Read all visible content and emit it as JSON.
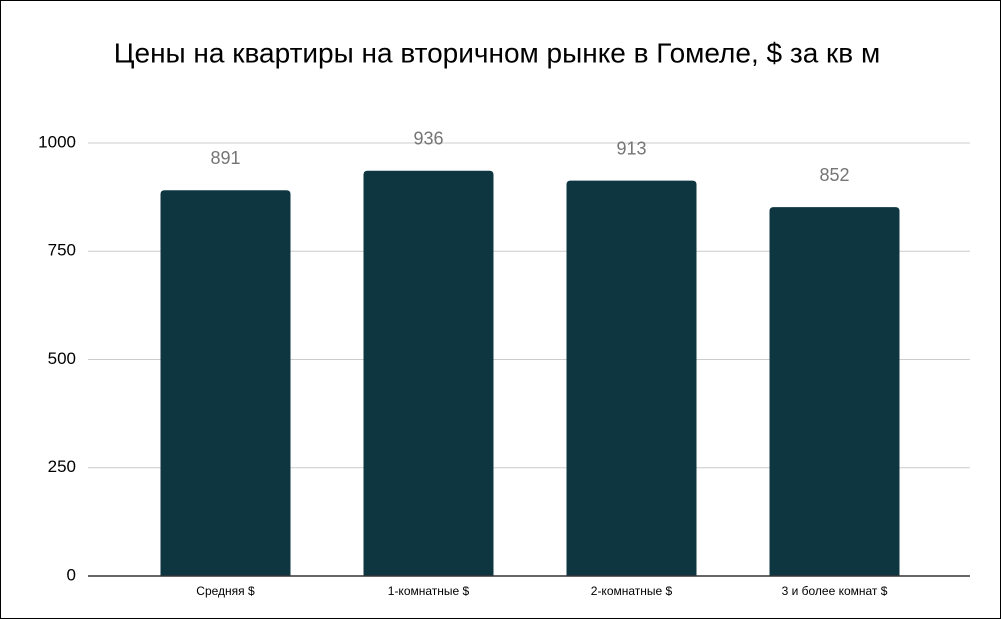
{
  "chart_data": {
    "type": "bar",
    "title": "Цены на квартиры на вторичном рынке в Гомеле, $ за кв м",
    "categories": [
      "Средняя $",
      "1-комнатные $",
      "2-комнатные $",
      "3 и более комнат $"
    ],
    "values": [
      891,
      936,
      913,
      852
    ],
    "color": "#0e3640",
    "ylim": [
      0,
      1000
    ],
    "yticks": [
      0,
      250,
      500,
      750,
      1000
    ],
    "grid": true
  }
}
